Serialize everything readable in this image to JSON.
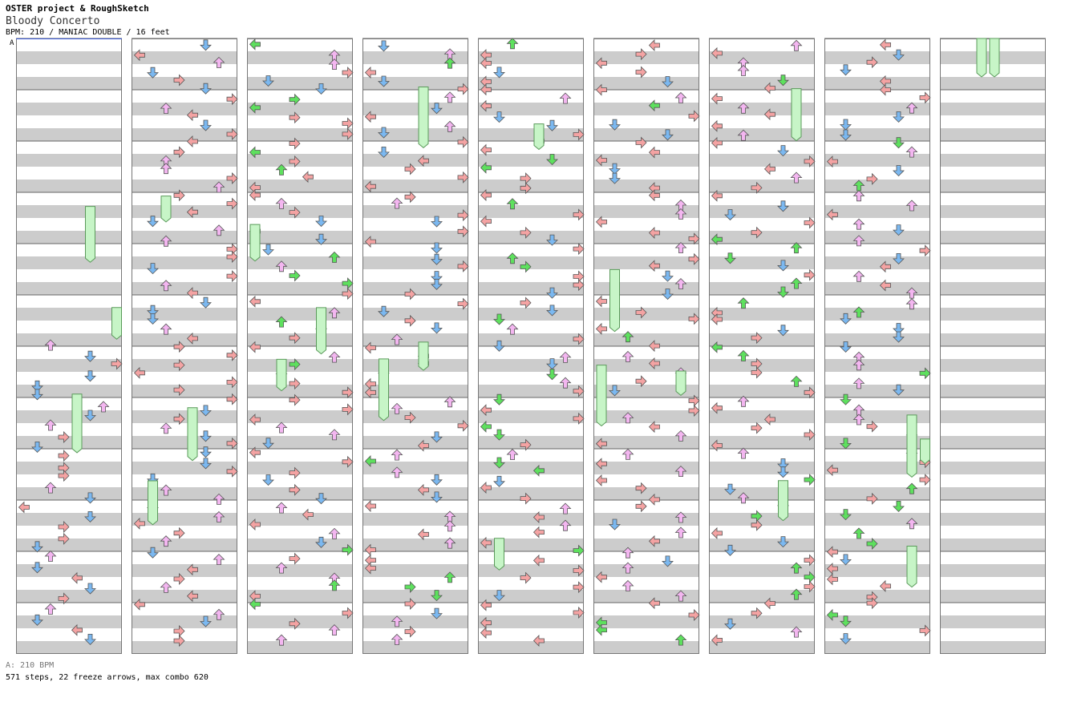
{
  "header": {
    "artist": "OSTER project & RoughSketch",
    "title": "Bloody Concerto",
    "info": "BPM: 210 / MANIAC DOUBLE / 16 feet"
  },
  "footer": {
    "bpm_note": "A: 210 BPM",
    "stats": "571 steps, 22 freeze arrows, max combo 620"
  },
  "bpm_marker": "A",
  "colors": {
    "red_arrow": "#f4a3a3",
    "blue_arrow": "#7bb8f0",
    "pink_arrow": "#f3b6f0",
    "green_arrow": "#5ee05e",
    "freeze_body": "#c7f5c7",
    "stripe_dark": "#cccccc",
    "stripe_light": "#ffffff",
    "outline": "#555555"
  },
  "chart_data": {
    "type": "table",
    "title": "Bloody Concerto",
    "mode": "MANIAC DOUBLE",
    "bpm": 210,
    "difficulty_feet": 16,
    "steps": 571,
    "freeze_arrows": 22,
    "max_combo": 620,
    "columns": 9,
    "measures_per_column": 12
  }
}
